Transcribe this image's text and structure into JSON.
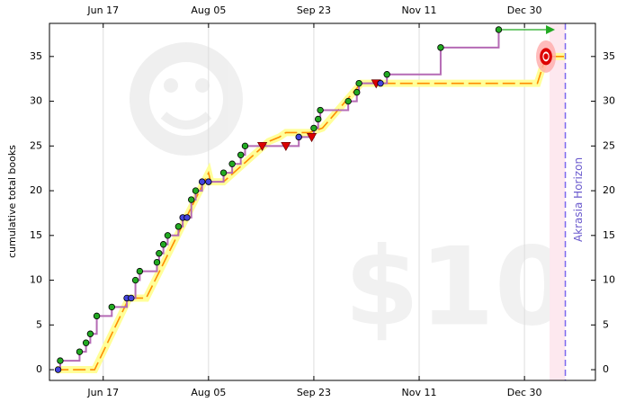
{
  "chart_data": {
    "type": "step",
    "ylabel": "cumulative total books",
    "x": [
      147,
      148,
      157,
      160,
      162,
      165,
      172,
      179,
      181,
      183,
      185,
      193,
      194,
      196,
      198,
      203,
      205,
      207,
      209,
      211,
      214,
      217,
      224,
      228,
      232,
      234,
      242,
      253,
      259,
      265,
      266,
      268,
      269,
      282,
      286,
      287,
      295,
      297,
      300,
      325,
      352
    ],
    "values": [
      0,
      1,
      2,
      3,
      4,
      6,
      7,
      8,
      8,
      10,
      11,
      12,
      13,
      14,
      15,
      16,
      17,
      17,
      19,
      20,
      21,
      21,
      22,
      23,
      24,
      25,
      25,
      25,
      26,
      26,
      27,
      28,
      29,
      30,
      31,
      32,
      32,
      32,
      33,
      36,
      38
    ],
    "point_colors": [
      "#4444dd",
      "#22aa22",
      "#22aa22",
      "#22aa22",
      "#22aa22",
      "#22aa22",
      "#22aa22",
      "#4444dd",
      "#4444dd",
      "#22aa22",
      "#22aa22",
      "#22aa22",
      "#22aa22",
      "#22aa22",
      "#22aa22",
      "#22aa22",
      "#4444dd",
      "#4444dd",
      "#22aa22",
      "#22aa22",
      "#4444dd",
      "#4444dd",
      "#22aa22",
      "#22aa22",
      "#22aa22",
      "#22aa22",
      "#dd0000",
      "#dd0000",
      "#4444dd",
      "#dd0000",
      "#22aa22",
      "#22aa22",
      "#22aa22",
      "#22aa22",
      "#22aa22",
      "#22aa22",
      "#dd0000",
      "#4444dd",
      "#22aa22",
      "#22aa22",
      "#22aa22"
    ],
    "line_color": "#b56bb5",
    "road": {
      "x": [
        146,
        164,
        180,
        188,
        217,
        218,
        224,
        245,
        250,
        253,
        264,
        270,
        288,
        370,
        374,
        383
      ],
      "values": [
        0,
        0,
        8,
        8,
        22,
        21,
        21,
        25.5,
        26,
        26.5,
        26.5,
        27,
        32,
        32,
        35,
        35
      ],
      "color": "#ff8c00",
      "band_color": "#ffff99"
    },
    "target": {
      "x": 374,
      "value": 35
    },
    "akrasia_horizon": {
      "x": 383,
      "label": "Akrasia Horizon"
    },
    "watermark": "$10",
    "xlim": [
      143,
      397
    ],
    "xticks": [
      {
        "value": 168,
        "label": "Jun 17"
      },
      {
        "value": 217,
        "label": "Aug 05"
      },
      {
        "value": 266,
        "label": "Sep 23"
      },
      {
        "value": 315,
        "label": "Nov 11"
      },
      {
        "value": 364,
        "label": "Dec 30"
      }
    ],
    "ylim": [
      -1.2,
      38.7
    ],
    "yticks": [
      0,
      5,
      10,
      15,
      20,
      25,
      30,
      35
    ],
    "grid_x": true
  }
}
